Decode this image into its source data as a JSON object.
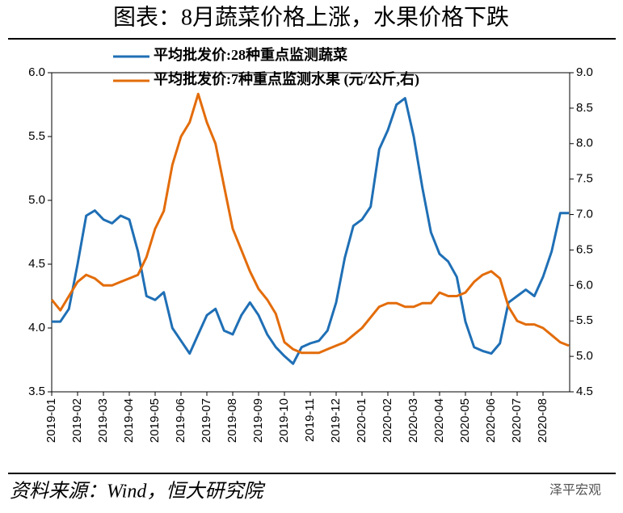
{
  "chart_data": {
    "type": "line",
    "title": "图表：8月蔬菜价格上涨，水果价格下跌",
    "source": "资料来源：Wind，恒大研究院",
    "watermark": "泽平宏观",
    "categories": [
      "2019-01",
      null,
      null,
      "2019-02",
      null,
      null,
      "2019-03",
      null,
      null,
      "2019-04",
      null,
      null,
      "2019-05",
      null,
      null,
      "2019-06",
      null,
      null,
      "2019-07",
      null,
      null,
      "2019-08",
      null,
      null,
      "2019-09",
      null,
      null,
      "2019-10",
      null,
      null,
      "2019-11",
      null,
      null,
      "2019-12",
      null,
      null,
      "2020-01",
      null,
      null,
      "2020-02",
      null,
      null,
      "2020-03",
      null,
      null,
      "2020-04",
      null,
      null,
      "2020-05",
      null,
      null,
      "2020-06",
      null,
      null,
      "2020-07",
      null,
      null,
      "2020-08",
      null,
      null,
      null
    ],
    "series": [
      {
        "name": "平均批发价:28种重点监测蔬菜",
        "color": "#1f6fb5",
        "values": [
          4.05,
          4.05,
          4.15,
          4.5,
          4.88,
          4.92,
          4.85,
          4.82,
          4.88,
          4.85,
          4.6,
          4.25,
          4.22,
          4.28,
          4.0,
          3.9,
          3.8,
          3.95,
          4.1,
          4.15,
          3.98,
          3.95,
          4.1,
          4.2,
          4.1,
          3.95,
          3.85,
          3.78,
          3.72,
          3.85,
          3.88,
          3.9,
          3.98,
          4.2,
          4.55,
          4.8,
          4.85,
          4.95,
          5.4,
          5.55,
          5.75,
          5.8,
          5.5,
          5.1,
          4.75,
          4.58,
          4.52,
          4.4,
          4.05,
          3.85,
          3.82,
          3.8,
          3.88,
          4.2,
          4.25,
          4.3,
          4.25,
          4.4,
          4.6,
          4.9,
          4.9
        ]
      },
      {
        "name": "平均批发价:7种重点监测水果 (元/公斤,右)",
        "color": "#e36c0a",
        "axis": "y2",
        "values": [
          5.8,
          5.65,
          5.85,
          6.05,
          6.15,
          6.1,
          6.0,
          6.0,
          6.05,
          6.1,
          6.15,
          6.4,
          6.8,
          7.05,
          7.7,
          8.1,
          8.3,
          8.7,
          8.3,
          8.0,
          7.4,
          6.8,
          6.5,
          6.2,
          5.95,
          5.8,
          5.6,
          5.2,
          5.1,
          5.05,
          5.05,
          5.05,
          5.1,
          5.15,
          5.2,
          5.3,
          5.4,
          5.55,
          5.7,
          5.75,
          5.75,
          5.7,
          5.7,
          5.75,
          5.75,
          5.9,
          5.85,
          5.85,
          5.9,
          6.05,
          6.15,
          6.2,
          6.1,
          5.7,
          5.5,
          5.45,
          5.45,
          5.4,
          5.3,
          5.2,
          5.15
        ]
      }
    ],
    "ylim": [
      3.5,
      6.0
    ],
    "yticks": [
      3.5,
      {
        "value": 4,
        "label": "4.0"
      },
      4.5,
      {
        "value": 5,
        "label": "5.0"
      },
      5.5,
      {
        "value": 6,
        "label": "6.0"
      }
    ],
    "y2lim": [
      4.5,
      9.0
    ],
    "y2ticks": [
      4.5,
      {
        "value": 5,
        "label": "5.0"
      },
      5.5,
      {
        "value": 6,
        "label": "6.0"
      },
      6.5,
      {
        "value": 7,
        "label": "7.0"
      },
      7.5,
      {
        "value": 8,
        "label": "8.0"
      },
      8.5,
      {
        "value": 9,
        "label": "9.0"
      }
    ],
    "grid": false
  }
}
